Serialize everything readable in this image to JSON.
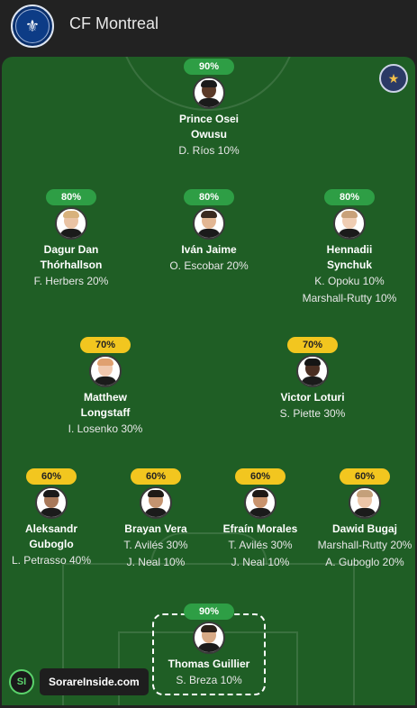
{
  "header": {
    "team_name": "CF Montreal"
  },
  "players": [
    {
      "id": "osei",
      "rating": "90%",
      "color": "green",
      "name": "Prince Osei Owusu",
      "subs": [
        "D. Ríos 10%"
      ],
      "skin": "#5a3a28",
      "hair": "#1a1a1a"
    },
    {
      "id": "dagur",
      "rating": "80%",
      "color": "green",
      "name": "Dagur Dan Thórhallson",
      "subs": [
        "F. Herbers 20%"
      ],
      "skin": "#e9c3a4",
      "hair": "#d8b27c"
    },
    {
      "id": "ivan",
      "rating": "80%",
      "color": "green",
      "name": "Iván Jaime",
      "subs": [
        "O. Escobar 20%"
      ],
      "skin": "#e2b693",
      "hair": "#3a2a1f"
    },
    {
      "id": "hennadii",
      "rating": "80%",
      "color": "green",
      "name": "Hennadii Synchuk",
      "subs": [
        "K. Opoku 10%",
        "Marshall-Rutty 10%"
      ],
      "skin": "#efcdb3",
      "hair": "#c9a27a"
    },
    {
      "id": "matthew",
      "rating": "70%",
      "color": "yellow",
      "name": "Matthew Longstaff",
      "subs": [
        "I. Losenko 30%"
      ],
      "skin": "#f0c8ae",
      "hair": "#e0a070"
    },
    {
      "id": "victor",
      "rating": "70%",
      "color": "yellow",
      "name": "Victor Loturi",
      "subs": [
        "S. Piette 30%"
      ],
      "skin": "#4a2e22",
      "hair": "#151515"
    },
    {
      "id": "aleksandr",
      "rating": "60%",
      "color": "yellow",
      "name": "Aleksandr Guboglo",
      "subs": [
        "L. Petrasso 40%"
      ],
      "skin": "#a8795a",
      "hair": "#1a1a1a"
    },
    {
      "id": "brayan",
      "rating": "60%",
      "color": "yellow",
      "name": "Brayan Vera",
      "subs": [
        "T. Avilés 30%",
        "J. Neal 10%"
      ],
      "skin": "#c49470",
      "hair": "#1f1a16"
    },
    {
      "id": "efrain",
      "rating": "60%",
      "color": "yellow",
      "name": "Efraín Morales",
      "subs": [
        "T. Avilés 30%",
        "J. Neal 10%"
      ],
      "skin": "#c9946e",
      "hair": "#1f1a16"
    },
    {
      "id": "dawid",
      "rating": "60%",
      "color": "yellow",
      "name": "Dawid Bugaj",
      "subs": [
        "Marshall-Rutty 20%",
        "A. Guboglo 20%"
      ],
      "skin": "#ecc6a8",
      "hair": "#c4a07a"
    },
    {
      "id": "thomas",
      "rating": "90%",
      "color": "green",
      "name": "Thomas Guillier",
      "subs": [
        "S. Breza 10%"
      ],
      "skin": "#d8aa86",
      "hair": "#2a1f18"
    }
  ],
  "brand": {
    "icon_text": "SI",
    "label": "SorareInside.com"
  }
}
